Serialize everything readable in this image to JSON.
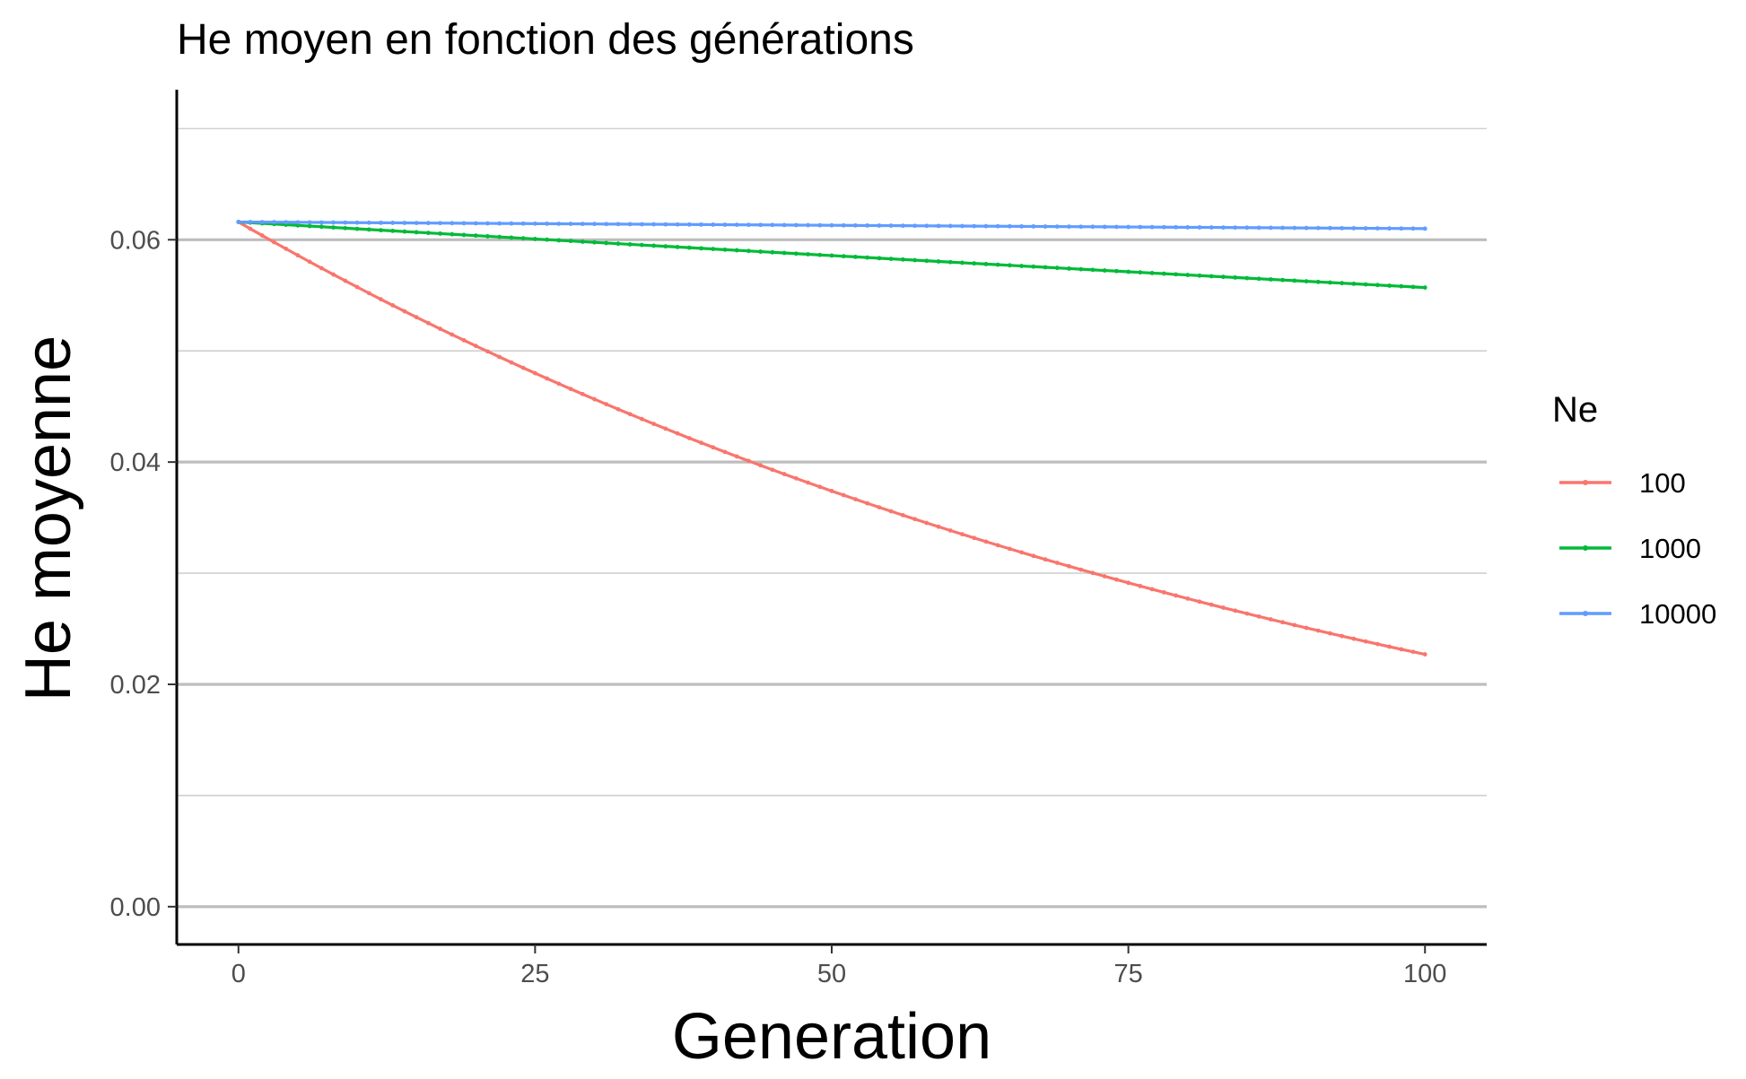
{
  "chart_data": {
    "type": "line",
    "title": "He moyen en fonction des générations",
    "xlabel": "Generation",
    "ylabel": "He moyenne",
    "xlim": [
      -5.2,
      105.2
    ],
    "ylim": [
      -0.0034,
      0.0735
    ],
    "x_ticks": [
      0,
      25,
      50,
      75,
      100
    ],
    "x_tick_labels": [
      "0",
      "25",
      "50",
      "75",
      "100"
    ],
    "y_ticks": [
      0.0,
      0.02,
      0.04,
      0.06
    ],
    "y_tick_labels": [
      "0.00",
      "0.02",
      "0.04",
      "0.06"
    ],
    "grid": "horizontal",
    "legend": {
      "title": "Ne",
      "position": "right"
    },
    "series": [
      {
        "name": "100",
        "color": "#F8766D",
        "start": 0.0616,
        "end": 0.0227,
        "model": "exponential"
      },
      {
        "name": "1000",
        "color": "#00BA38",
        "start": 0.0616,
        "end": 0.0557,
        "model": "exponential"
      },
      {
        "name": "10000",
        "color": "#619CFF",
        "start": 0.0616,
        "end": 0.061,
        "model": "exponential"
      }
    ],
    "x": {
      "from": 0,
      "to": 100,
      "step": 1
    }
  }
}
